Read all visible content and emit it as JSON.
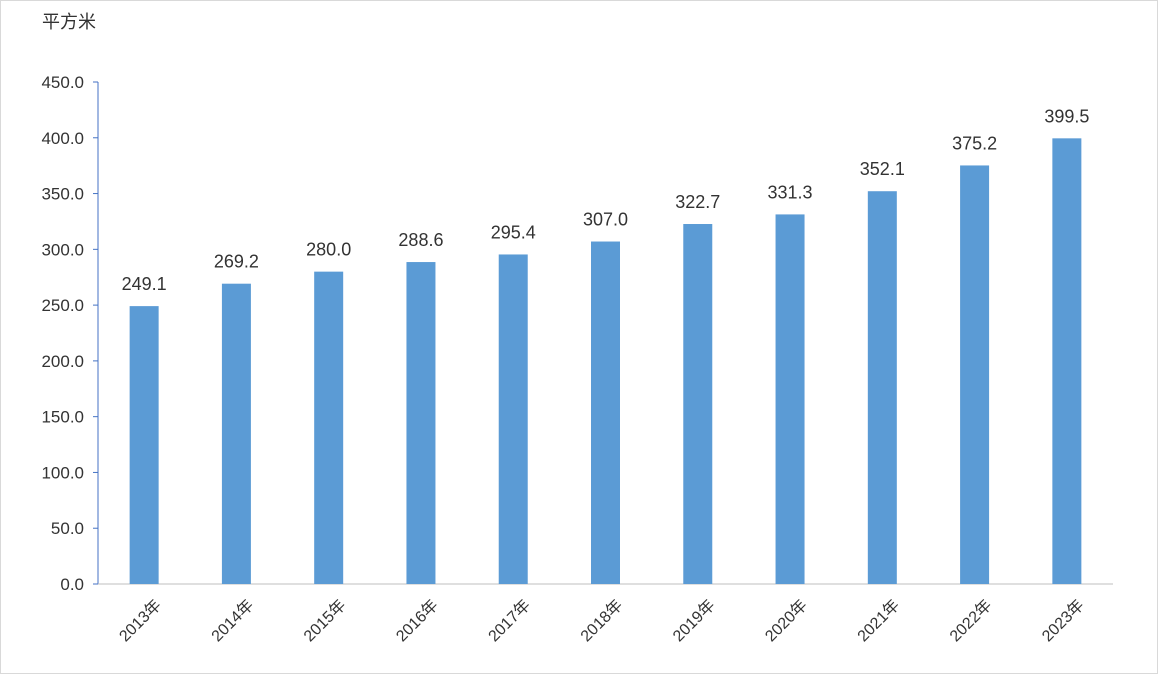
{
  "colors": {
    "bar": "#5b9bd5",
    "axis": "#4472c4",
    "text": "#333333",
    "border": "#d9d9d9"
  },
  "chart_data": {
    "type": "bar",
    "unit": "平方米",
    "categories": [
      "2013年",
      "2014年",
      "2015年",
      "2016年",
      "2017年",
      "2018年",
      "2019年",
      "2020年",
      "2021年",
      "2022年",
      "2023年"
    ],
    "values": [
      249.1,
      269.2,
      280.0,
      288.6,
      295.4,
      307.0,
      322.7,
      331.3,
      352.1,
      375.2,
      399.5
    ],
    "value_labels": [
      "249.1",
      "269.2",
      "280.0",
      "288.6",
      "295.4",
      "307.0",
      "322.7",
      "331.3",
      "352.1",
      "375.2",
      "399.5"
    ],
    "ylim": [
      0,
      450
    ],
    "yticks": [
      0,
      50,
      100,
      150,
      200,
      250,
      300,
      350,
      400,
      450
    ],
    "ytick_labels": [
      "0.0",
      "50.0",
      "100.0",
      "150.0",
      "200.0",
      "250.0",
      "300.0",
      "350.0",
      "400.0",
      "450.0"
    ],
    "grid": false,
    "legend": "none"
  }
}
